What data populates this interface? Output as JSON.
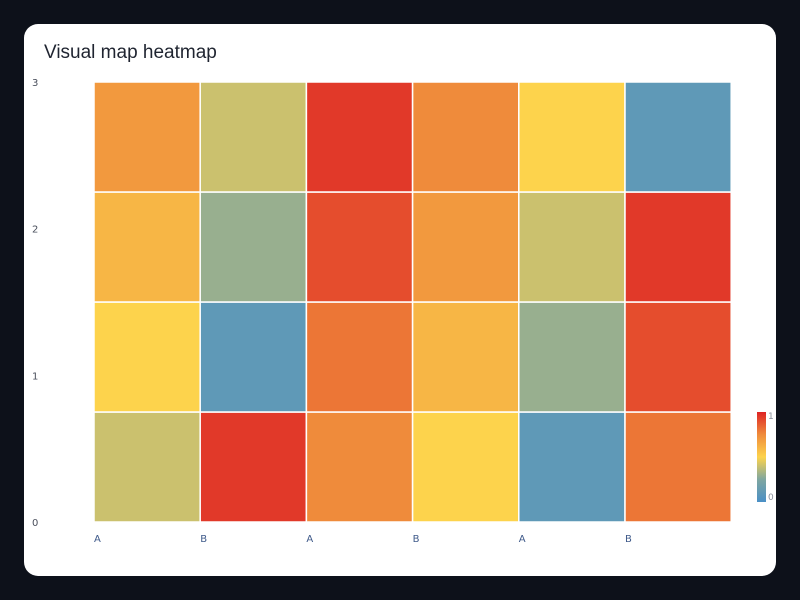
{
  "chart_data": {
    "type": "heatmap",
    "title": "Visual map heatmap",
    "x_categories": [
      "A",
      "B",
      "A",
      "B",
      "A",
      "B"
    ],
    "y_ticks": [
      "0",
      "1",
      "2",
      "3"
    ],
    "rows": [
      [
        0.4,
        0.95,
        0.75,
        0.5,
        0.1,
        0.8
      ],
      [
        0.5,
        0.1,
        0.8,
        0.6,
        0.3,
        0.9
      ],
      [
        0.6,
        0.3,
        0.9,
        0.7,
        0.4,
        0.95
      ],
      [
        0.7,
        0.4,
        0.95,
        0.75,
        0.5,
        0.1
      ]
    ],
    "visual_map": {
      "min_label": "0",
      "max_label": "1",
      "min": 0,
      "max": 1,
      "colors": [
        "#4a90c6",
        "#7fa6a0",
        "#fdd34c",
        "#ef8b3b",
        "#de2424"
      ]
    }
  }
}
